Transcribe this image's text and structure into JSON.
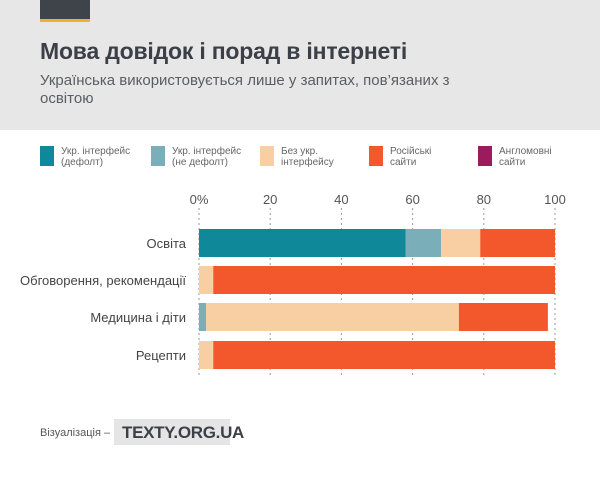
{
  "title": "Мова довідок і порад в інтернеті",
  "subtitle": "Українська використовується лише у запитах, пов’язаних з освітою",
  "footer": {
    "label": "Візуалізація –",
    "logo_text": "TEXTY.ORG.UA"
  },
  "chart_data": {
    "type": "bar",
    "orientation": "horizontal",
    "stacked": true,
    "categories": [
      "Освіта",
      "Обговорення, рекомендації",
      "Медицина і діти",
      "Рецепти"
    ],
    "series": [
      {
        "name": "Укр. інтерфейс (дефолт)",
        "color": "#0f8899",
        "values": [
          58,
          0,
          0,
          0
        ]
      },
      {
        "name": "Укр. інтерфейс (не дефолт)",
        "color": "#7aaeb8",
        "values": [
          10,
          0,
          2,
          0
        ]
      },
      {
        "name": "Без укр. інтерфейсу",
        "color": "#f8cfa3",
        "values": [
          11,
          4,
          71,
          4
        ]
      },
      {
        "name": "Російські сайти",
        "color": "#f2582b",
        "values": [
          21,
          96,
          25,
          96
        ]
      },
      {
        "name": "Англомовні сайти",
        "color": "#9c1b5c",
        "values": [
          0,
          0,
          0,
          0
        ]
      }
    ],
    "xlim": [
      0,
      100
    ],
    "xticks": [
      "0%",
      "20",
      "40",
      "60",
      "80",
      "100"
    ],
    "grid": true,
    "legend_position": "top"
  }
}
